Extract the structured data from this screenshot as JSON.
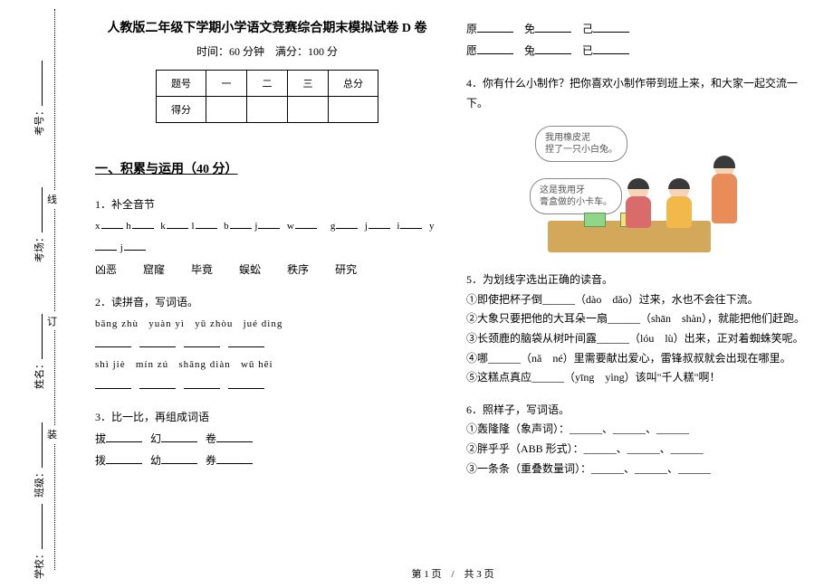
{
  "gutter": {
    "labels": {
      "exam_no": "考号：",
      "room": "考场：",
      "name": "姓名：",
      "class": "班级：",
      "school": "学校："
    },
    "chars": [
      "线",
      "订",
      "装"
    ]
  },
  "title": "人教版二年级下学期小学语文竞赛综合期末模拟试卷 D 卷",
  "subtitle": "时间：60 分钟　满分：100 分",
  "score_table": {
    "headers": [
      "题号",
      "一",
      "二",
      "三",
      "总分"
    ],
    "row_label": "得分"
  },
  "section1": {
    "header": "一、积累与运用（40 分）",
    "q1": {
      "label": "1．补全音节",
      "frag": [
        "x",
        "  h",
        "k",
        "  l",
        "b",
        "  j",
        "w",
        "g",
        "  j",
        "i",
        "y",
        "  j"
      ],
      "words": [
        "凶恶",
        "窟窿",
        "毕竟",
        "蜈蚣",
        "秩序",
        "研究"
      ]
    },
    "q2": {
      "label": "2．读拼音，写词语。",
      "row1": [
        "bāng zhù",
        "yuàn yì",
        "yǔ zhòu",
        "jué dìng"
      ],
      "row2": [
        "shì jiè",
        "mín zú",
        "shāng diàn",
        "wū hēi"
      ]
    },
    "q3": {
      "label": "3．比一比，再组成词语",
      "pairs": [
        [
          "拔",
          "幻",
          "卷"
        ],
        [
          "拨",
          "幼",
          "券"
        ]
      ]
    },
    "right_top": {
      "row1": [
        "原",
        "免",
        "己"
      ],
      "row2": [
        "愿",
        "兔",
        "已"
      ]
    },
    "q4": "4．你有什么小制作？把你喜欢小制作带到班上来，和大家一起交流一下。",
    "bubble1": "我用橡皮泥\n捏了一只小白兔。",
    "bubble2": "这是我用牙\n膏盒做的小卡车。",
    "q5": {
      "label": "5．为划线字选出正确的读音。",
      "items": [
        "①即使把杯子倒______（dào　dǎo）过来，水也不会往下流。",
        "②大象只要把他的大耳朵一扇______（shān　shàn），就能把他们赶跑。",
        "③长颈鹿的脑袋从树叶间露______（lóu　lù）出来，正对着蜘蛛笑呢。",
        "④哪______（nǎ　né）里需要献出爱心，雷锋叔叔就会出现在哪里。",
        "⑤这糕点真应______（yīng　yìng）该叫\"千人糕\"啊！"
      ]
    },
    "q6": {
      "label": "6．照样子，写词语。",
      "items": [
        "①轰隆隆（象声词）：______、______、______",
        "②胖乎乎（ABB 形式）：______、______、______",
        "③一条条（重叠数量词）：______、______、______"
      ]
    }
  },
  "illustration_colors": {
    "table": "#d4a85a",
    "person1_body": "#d96b6b",
    "person2_body": "#f2b94a",
    "person3_body": "#e88c5a",
    "head": "#f5d5b8",
    "hair": "#3a3a3a",
    "book": "#8fd688"
  },
  "footer": "第 1 页　/　共 3 页"
}
